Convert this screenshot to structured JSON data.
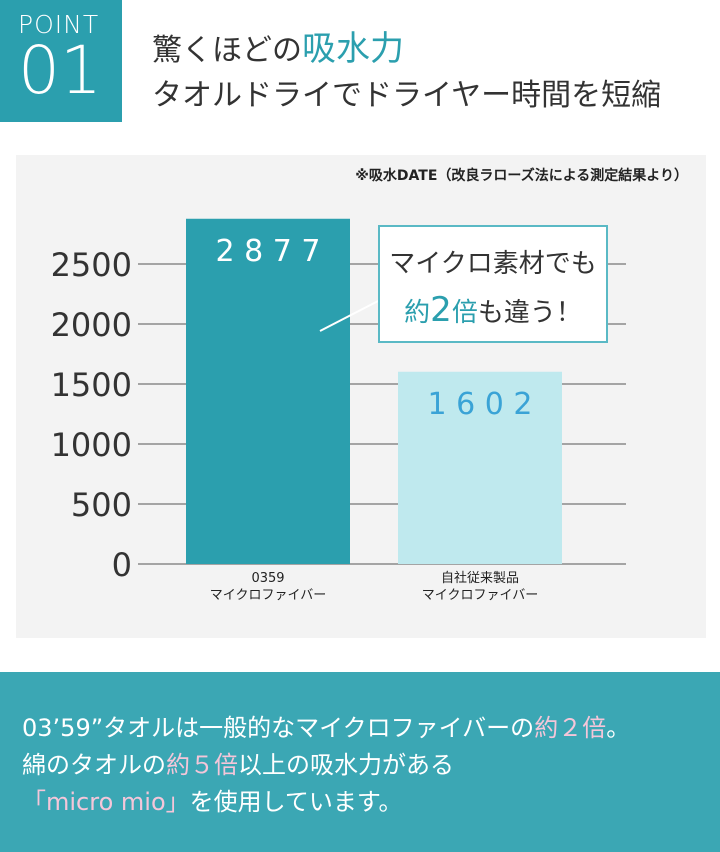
{
  "badge": {
    "word": "POINT",
    "number": "01"
  },
  "heading": {
    "line1_prefix": "驚くほどの",
    "line1_highlight": "吸水力",
    "line2": "タオルドライでドライヤー時間を短縮"
  },
  "note": "※吸水DATE（改良ラローズ法による測定結果より）",
  "callout": {
    "line1": "マイクロ素材でも",
    "line2_pre": "約",
    "line2_num": "2",
    "line2_mid": "倍",
    "line2_post": "も違う！"
  },
  "colors": {
    "accent": "#2b9fae",
    "bar1": "#2b9fae",
    "bar2": "#bfe9ee",
    "bar2_label": "#3aa3d6",
    "band": "#3ba7b4",
    "pink": "#f5c6d9"
  },
  "chart_data": {
    "type": "bar",
    "categories": [
      "0359\nマイクロファイバー",
      "自社従来製品\nマイクロファイバー"
    ],
    "values": [
      2877,
      1602
    ],
    "data_labels": [
      "2 8 7 7",
      "1 6 0 2"
    ],
    "yticks": [
      0,
      500,
      1000,
      1500,
      2000,
      2500
    ],
    "ylim": [
      0,
      2900
    ],
    "grid": true,
    "title": "",
    "xlabel": "",
    "ylabel": ""
  },
  "bottom": {
    "line1_a": "03’59”タオルは一般的なマイクロファイバーの",
    "line1_b": "約２倍",
    "line1_c": "。",
    "line2_a": "綿のタオルの",
    "line2_b": "約５倍",
    "line2_c": "以上の吸水力がある",
    "line3_a": "「micro mio」",
    "line3_b": "を使用しています。"
  }
}
